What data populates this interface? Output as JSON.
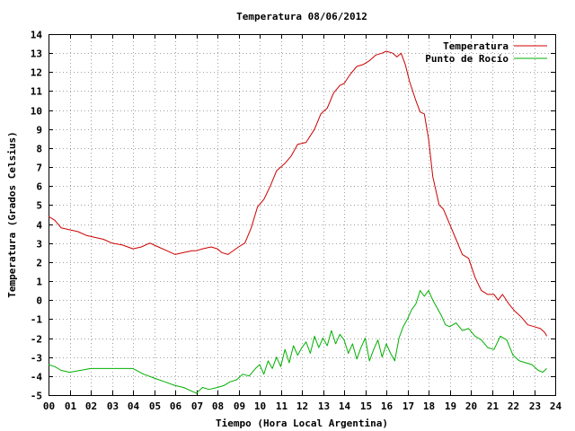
{
  "chart_data": {
    "type": "line",
    "title": "Temperatura 08/06/2012",
    "xlabel": "Tiempo (Hora Local Argentina)",
    "ylabel": "Temperatura (Grados Celsius)",
    "xlim": [
      0,
      24
    ],
    "ylim": [
      -5,
      14
    ],
    "grid": true,
    "legend_position": "top-right",
    "x_tick_labels": [
      "00",
      "01",
      "02",
      "03",
      "04",
      "05",
      "06",
      "07",
      "08",
      "09",
      "10",
      "11",
      "12",
      "13",
      "14",
      "15",
      "16",
      "17",
      "18",
      "19",
      "20",
      "21",
      "22",
      "23",
      "24"
    ],
    "y_tick_labels": [
      "-5",
      "-4",
      "-3",
      "-2",
      "-1",
      "0",
      "1",
      "2",
      "3",
      "4",
      "5",
      "6",
      "7",
      "8",
      "9",
      "10",
      "11",
      "12",
      "13",
      "14"
    ],
    "series": [
      {
        "name": "Temperatura",
        "color": "#cc0000",
        "x": [
          0.0,
          0.3,
          0.6,
          1.0,
          1.4,
          1.8,
          2.2,
          2.6,
          3.0,
          3.5,
          4.0,
          4.4,
          4.8,
          5.2,
          5.6,
          6.0,
          6.4,
          6.8,
          7.0,
          7.3,
          7.7,
          8.0,
          8.2,
          8.5,
          9.0,
          9.3,
          9.6,
          9.9,
          10.2,
          10.5,
          10.8,
          11.2,
          11.5,
          11.8,
          12.2,
          12.6,
          12.9,
          13.2,
          13.5,
          13.8,
          14.0,
          14.3,
          14.6,
          14.9,
          15.2,
          15.5,
          15.8,
          16.0,
          16.3,
          16.5,
          16.7,
          16.9,
          17.1,
          17.4,
          17.6,
          17.8,
          18.0,
          18.2,
          18.5,
          18.7,
          19.0,
          19.3,
          19.6,
          19.9,
          20.2,
          20.5,
          20.8,
          21.1,
          21.3,
          21.5,
          21.8,
          22.1,
          22.4,
          22.7,
          23.0,
          23.3,
          23.5,
          23.6
        ],
        "y": [
          4.4,
          4.2,
          3.8,
          3.7,
          3.6,
          3.4,
          3.3,
          3.2,
          3.0,
          2.9,
          2.7,
          2.8,
          3.0,
          2.8,
          2.6,
          2.4,
          2.5,
          2.6,
          2.6,
          2.7,
          2.8,
          2.7,
          2.5,
          2.4,
          2.8,
          3.0,
          3.8,
          4.9,
          5.3,
          6.0,
          6.8,
          7.2,
          7.6,
          8.2,
          8.3,
          9.0,
          9.8,
          10.1,
          10.9,
          11.3,
          11.4,
          11.9,
          12.3,
          12.4,
          12.6,
          12.9,
          13.0,
          13.1,
          13.0,
          12.8,
          13.0,
          12.4,
          11.5,
          10.5,
          9.9,
          9.8,
          8.5,
          6.5,
          5.0,
          4.8,
          4.0,
          3.2,
          2.4,
          2.2,
          1.2,
          0.5,
          0.3,
          0.3,
          0.0,
          0.3,
          -0.2,
          -0.6,
          -0.9,
          -1.3,
          -1.4,
          -1.5,
          -1.7,
          -1.9
        ]
      },
      {
        "name": "Punto de Rocío",
        "color": "#00b000",
        "x": [
          0.0,
          0.3,
          0.6,
          1.0,
          1.5,
          2.0,
          2.5,
          3.0,
          3.5,
          4.0,
          4.5,
          5.0,
          5.5,
          6.0,
          6.4,
          6.8,
          7.0,
          7.3,
          7.6,
          8.0,
          8.3,
          8.6,
          8.9,
          9.2,
          9.5,
          9.8,
          10.0,
          10.2,
          10.4,
          10.6,
          10.8,
          11.0,
          11.2,
          11.4,
          11.6,
          11.8,
          12.0,
          12.2,
          12.4,
          12.6,
          12.8,
          13.0,
          13.2,
          13.4,
          13.6,
          13.8,
          14.0,
          14.2,
          14.4,
          14.6,
          14.8,
          15.0,
          15.2,
          15.4,
          15.6,
          15.8,
          16.0,
          16.2,
          16.4,
          16.6,
          16.8,
          17.0,
          17.2,
          17.4,
          17.6,
          17.8,
          18.0,
          18.2,
          18.4,
          18.6,
          18.8,
          19.0,
          19.3,
          19.6,
          19.9,
          20.2,
          20.5,
          20.8,
          21.1,
          21.4,
          21.7,
          22.0,
          22.3,
          22.6,
          22.9,
          23.2,
          23.4,
          23.6
        ],
        "y": [
          -3.4,
          -3.5,
          -3.7,
          -3.8,
          -3.7,
          -3.6,
          -3.6,
          -3.6,
          -3.6,
          -3.6,
          -3.9,
          -4.1,
          -4.3,
          -4.5,
          -4.6,
          -4.8,
          -4.9,
          -4.6,
          -4.7,
          -4.6,
          -4.5,
          -4.3,
          -4.2,
          -3.9,
          -4.0,
          -3.6,
          -3.4,
          -3.9,
          -3.2,
          -3.6,
          -3.0,
          -3.5,
          -2.6,
          -3.3,
          -2.4,
          -2.9,
          -2.5,
          -2.2,
          -2.8,
          -1.9,
          -2.5,
          -2.0,
          -2.4,
          -1.6,
          -2.3,
          -1.8,
          -2.1,
          -2.8,
          -2.3,
          -3.1,
          -2.5,
          -2.0,
          -3.2,
          -2.6,
          -2.1,
          -3.0,
          -2.3,
          -2.8,
          -3.2,
          -2.0,
          -1.4,
          -1.0,
          -0.5,
          -0.2,
          0.5,
          0.2,
          0.5,
          0.0,
          -0.4,
          -0.8,
          -1.3,
          -1.4,
          -1.2,
          -1.6,
          -1.5,
          -1.9,
          -2.1,
          -2.5,
          -2.6,
          -1.9,
          -2.1,
          -2.9,
          -3.2,
          -3.3,
          -3.4,
          -3.7,
          -3.8,
          -3.6
        ]
      }
    ]
  }
}
